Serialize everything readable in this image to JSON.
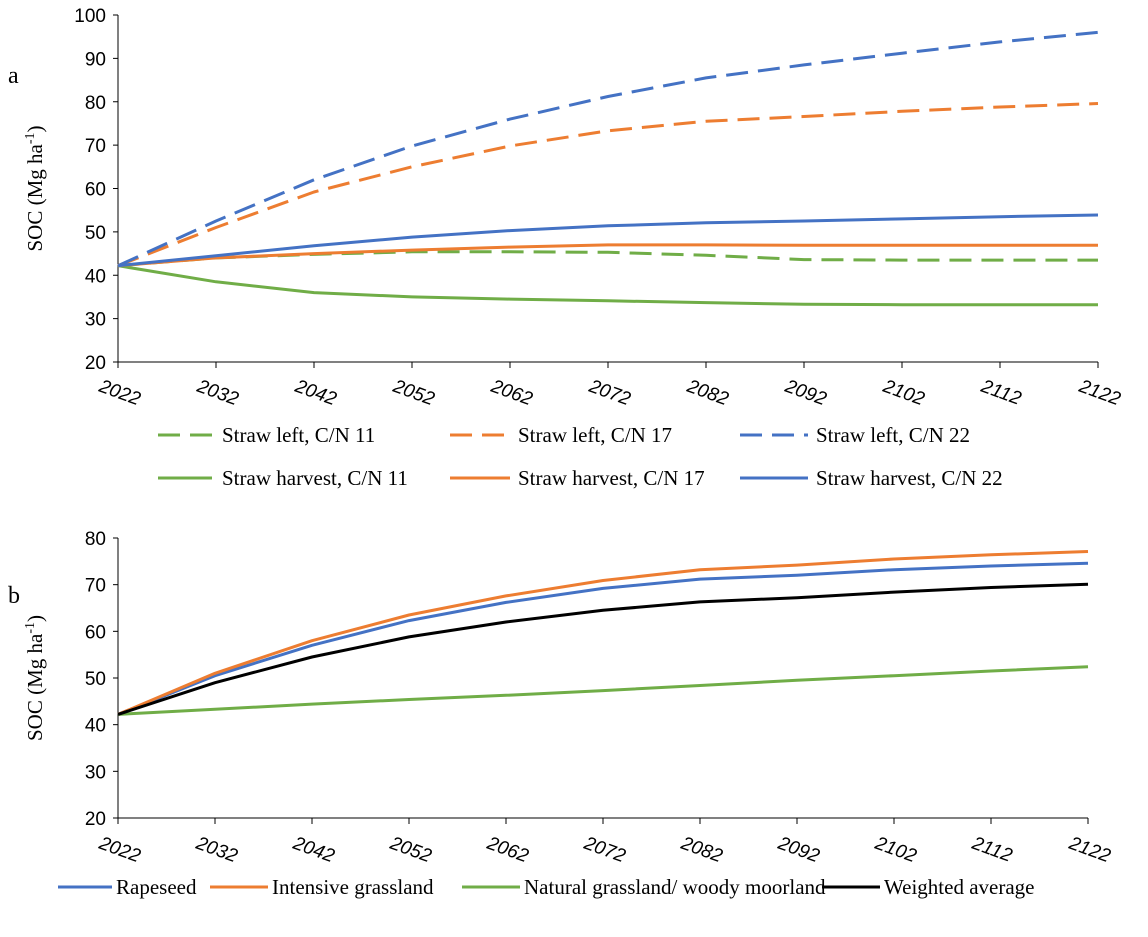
{
  "chart_data": [
    {
      "type": "line",
      "panel_label": "a",
      "ylabel": "SOC (Mg ha",
      "ylabel_superscript": "-1",
      "ylabel_close": ")",
      "ylim": [
        20,
        100
      ],
      "yticks": [
        "20",
        "30",
        "40",
        "50",
        "60",
        "70",
        "80",
        "90",
        "100"
      ],
      "xlim": [
        2022,
        2122
      ],
      "xticks": [
        "2022",
        "2032",
        "2042",
        "2052",
        "2062",
        "2072",
        "2082",
        "2092",
        "2102",
        "2112",
        "2122"
      ],
      "grid": false,
      "legend_position": "bottom",
      "x": [
        2022,
        2032,
        2042,
        2052,
        2062,
        2072,
        2082,
        2092,
        2102,
        2112,
        2122
      ],
      "series": [
        {
          "name": "Straw left, C/N 11",
          "color": "#70AD47",
          "dash": true,
          "values": [
            42.2,
            44.0,
            44.8,
            45.4,
            45.4,
            45.3,
            44.6,
            43.6,
            43.5,
            43.5,
            43.5
          ]
        },
        {
          "name": "Straw left, C/N 17",
          "color": "#ED7D31",
          "dash": true,
          "values": [
            42.2,
            51.0,
            59.2,
            65.0,
            69.8,
            73.3,
            75.5,
            76.6,
            77.8,
            78.8,
            79.6
          ]
        },
        {
          "name": "Straw left, C/N 22",
          "color": "#4472C4",
          "dash": true,
          "values": [
            42.2,
            52.5,
            62.0,
            69.8,
            76.0,
            81.2,
            85.5,
            88.5,
            91.2,
            93.8,
            96.0
          ]
        },
        {
          "name": "Straw harvest, C/N 11",
          "color": "#70AD47",
          "dash": false,
          "values": [
            42.2,
            38.5,
            36.0,
            35.0,
            34.5,
            34.1,
            33.7,
            33.3,
            33.2,
            33.2,
            33.2
          ]
        },
        {
          "name": "Straw harvest, C/N 17",
          "color": "#ED7D31",
          "dash": false,
          "values": [
            42.2,
            44.0,
            45.0,
            45.8,
            46.5,
            47.0,
            47.0,
            46.9,
            46.9,
            46.9,
            46.9
          ]
        },
        {
          "name": "Straw harvest, C/N 22",
          "color": "#4472C4",
          "dash": false,
          "values": [
            42.2,
            44.5,
            46.8,
            48.8,
            50.3,
            51.4,
            52.1,
            52.5,
            53.0,
            53.5,
            53.9
          ]
        }
      ]
    },
    {
      "type": "line",
      "panel_label": "b",
      "ylabel": "SOC (Mg ha",
      "ylabel_superscript": "-1",
      "ylabel_close": ")",
      "ylim": [
        20,
        80
      ],
      "yticks": [
        "20",
        "30",
        "40",
        "50",
        "60",
        "70",
        "80"
      ],
      "xlim": [
        2022,
        2122
      ],
      "xticks": [
        "2022",
        "2032",
        "2042",
        "2052",
        "2062",
        "2072",
        "2082",
        "2092",
        "2102",
        "2112",
        "2122"
      ],
      "grid": false,
      "legend_position": "bottom",
      "x": [
        2022,
        2032,
        2042,
        2052,
        2062,
        2072,
        2082,
        2092,
        2102,
        2112,
        2122
      ],
      "series": [
        {
          "name": "Rapeseed",
          "color": "#4472C4",
          "dash": false,
          "values": [
            42.2,
            50.5,
            57.0,
            62.3,
            66.2,
            69.2,
            71.2,
            72.0,
            73.2,
            74.0,
            74.6
          ]
        },
        {
          "name": "Intensive grassland",
          "color": "#ED7D31",
          "dash": false,
          "values": [
            42.2,
            51.0,
            58.0,
            63.5,
            67.6,
            70.9,
            73.2,
            74.2,
            75.5,
            76.4,
            77.1
          ]
        },
        {
          "name": "Natural grassland/ woody moorland",
          "color": "#70AD47",
          "dash": false,
          "values": [
            42.2,
            43.3,
            44.4,
            45.4,
            46.3,
            47.3,
            48.4,
            49.5,
            50.5,
            51.5,
            52.4
          ]
        },
        {
          "name": "Weighted average",
          "color": "#000000",
          "dash": false,
          "values": [
            42.2,
            49.0,
            54.5,
            58.8,
            62.0,
            64.5,
            66.3,
            67.2,
            68.4,
            69.4,
            70.1
          ]
        }
      ]
    }
  ]
}
